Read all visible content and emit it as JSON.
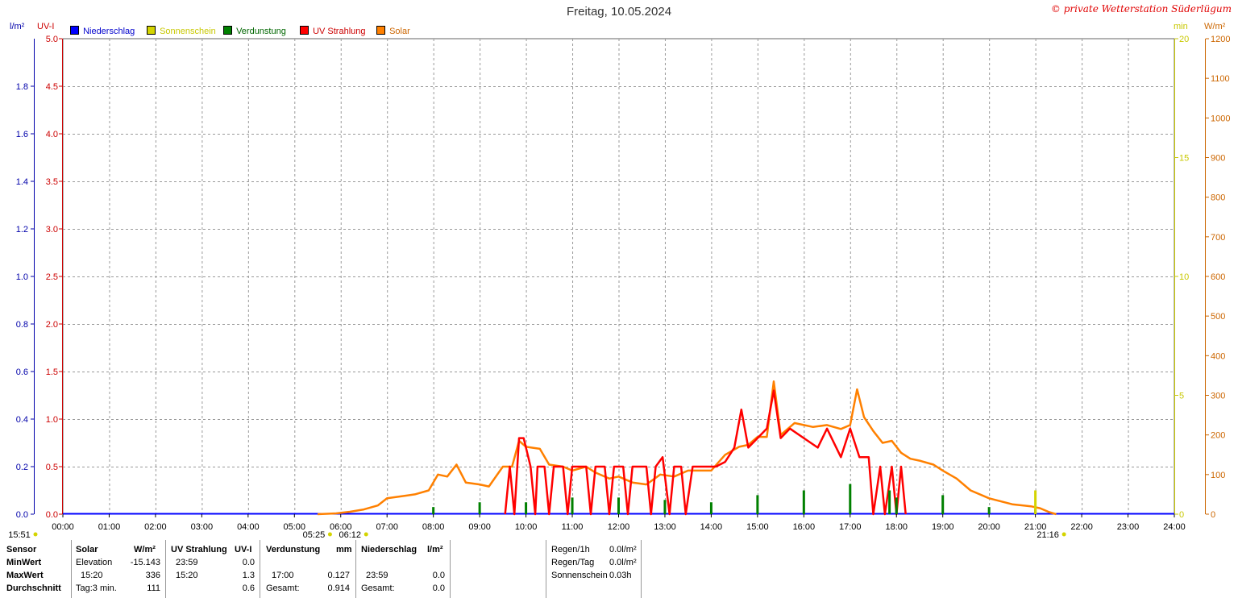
{
  "title": "Freitag, 10.05.2024",
  "copyright": "© private Wetterstation Süderlügum",
  "axis_units": {
    "left1": "l/m²",
    "left2": "UV-I",
    "right1": "min",
    "right2": "W/m²"
  },
  "legend": [
    {
      "label": "Niederschlag",
      "color": "#0000ff"
    },
    {
      "label": "Sonnenschein",
      "color": "#d4d400"
    },
    {
      "label": "Verdunstung",
      "color": "#008000"
    },
    {
      "label": "UV Strahlung",
      "color": "#ff0000"
    },
    {
      "label": "Solar",
      "color": "#ff8000"
    }
  ],
  "colors": {
    "precip_axis": "#0000aa",
    "uv_axis": "#cc0000",
    "sun_axis": "#c8c800",
    "solar_axis": "#cc6600",
    "grid": "#999999"
  },
  "chart_data": {
    "type": "line",
    "title": "Freitag, 10.05.2024",
    "x_ticks": [
      "00:00",
      "01:00",
      "02:00",
      "03:00",
      "04:00",
      "05:00",
      "06:00",
      "07:00",
      "08:00",
      "09:00",
      "10:00",
      "11:00",
      "12:00",
      "13:00",
      "14:00",
      "15:00",
      "16:00",
      "17:00",
      "18:00",
      "19:00",
      "20:00",
      "21:00",
      "22:00",
      "23:00",
      "24:00"
    ],
    "xlim_hours": [
      0,
      24
    ],
    "y_axes": {
      "precip": {
        "unit": "l/m²",
        "range": [
          0,
          2.0
        ],
        "ticks": [
          "0.0",
          "0.2",
          "0.4",
          "0.6",
          "0.8",
          "1.0",
          "1.2",
          "1.4",
          "1.6",
          "1.8"
        ]
      },
      "uv": {
        "unit": "UV-I",
        "range": [
          0,
          5.0
        ],
        "ticks": [
          "0.0",
          "0.5",
          "1.0",
          "1.5",
          "2.0",
          "2.5",
          "3.0",
          "3.5",
          "4.0",
          "4.5",
          "5.0"
        ]
      },
      "sunshine": {
        "unit": "min",
        "range": [
          0,
          20
        ],
        "ticks": [
          "0",
          "5",
          "10",
          "15",
          "20"
        ]
      },
      "solar": {
        "unit": "W/m²",
        "range": [
          0,
          1200
        ],
        "ticks": [
          "0",
          "100",
          "200",
          "300",
          "400",
          "500",
          "600",
          "700",
          "800",
          "900",
          "1000",
          "1100",
          "1200"
        ]
      }
    },
    "grid": true,
    "legend_position": "top-left",
    "series": [
      {
        "name": "Solar",
        "axis": "solar",
        "color": "#ff8000",
        "points": [
          [
            5.5,
            0
          ],
          [
            5.9,
            2
          ],
          [
            6.2,
            6
          ],
          [
            6.5,
            12
          ],
          [
            6.8,
            22
          ],
          [
            7.0,
            40
          ],
          [
            7.3,
            45
          ],
          [
            7.6,
            50
          ],
          [
            7.9,
            60
          ],
          [
            8.1,
            100
          ],
          [
            8.3,
            95
          ],
          [
            8.5,
            125
          ],
          [
            8.7,
            80
          ],
          [
            9.0,
            75
          ],
          [
            9.2,
            70
          ],
          [
            9.5,
            120
          ],
          [
            9.7,
            120
          ],
          [
            9.85,
            185
          ],
          [
            10.0,
            170
          ],
          [
            10.3,
            165
          ],
          [
            10.5,
            125
          ],
          [
            10.8,
            120
          ],
          [
            11.0,
            110
          ],
          [
            11.3,
            120
          ],
          [
            11.5,
            105
          ],
          [
            11.8,
            90
          ],
          [
            12.0,
            95
          ],
          [
            12.3,
            80
          ],
          [
            12.6,
            75
          ],
          [
            12.9,
            100
          ],
          [
            13.2,
            95
          ],
          [
            13.5,
            110
          ],
          [
            13.8,
            110
          ],
          [
            14.0,
            110
          ],
          [
            14.3,
            150
          ],
          [
            14.6,
            170
          ],
          [
            14.8,
            175
          ],
          [
            15.0,
            195
          ],
          [
            15.2,
            195
          ],
          [
            15.35,
            335
          ],
          [
            15.5,
            200
          ],
          [
            15.8,
            230
          ],
          [
            16.0,
            225
          ],
          [
            16.2,
            220
          ],
          [
            16.5,
            225
          ],
          [
            16.8,
            215
          ],
          [
            17.0,
            225
          ],
          [
            17.15,
            315
          ],
          [
            17.3,
            245
          ],
          [
            17.5,
            210
          ],
          [
            17.7,
            180
          ],
          [
            17.9,
            185
          ],
          [
            18.1,
            155
          ],
          [
            18.3,
            140
          ],
          [
            18.5,
            135
          ],
          [
            18.8,
            125
          ],
          [
            19.0,
            110
          ],
          [
            19.3,
            90
          ],
          [
            19.6,
            60
          ],
          [
            20.0,
            40
          ],
          [
            20.5,
            25
          ],
          [
            20.9,
            20
          ],
          [
            21.1,
            15
          ],
          [
            21.3,
            5
          ],
          [
            21.45,
            0
          ]
        ]
      },
      {
        "name": "UV Strahlung",
        "axis": "uv",
        "color": "#ff0000",
        "points": [
          [
            9.55,
            0
          ],
          [
            9.65,
            0.5
          ],
          [
            9.75,
            0.0
          ],
          [
            9.85,
            0.8
          ],
          [
            9.95,
            0.8
          ],
          [
            10.1,
            0.5
          ],
          [
            10.2,
            0.0
          ],
          [
            10.25,
            0.5
          ],
          [
            10.4,
            0.5
          ],
          [
            10.5,
            0.0
          ],
          [
            10.6,
            0.5
          ],
          [
            10.8,
            0.5
          ],
          [
            10.9,
            0.0
          ],
          [
            11.0,
            0.5
          ],
          [
            11.3,
            0.5
          ],
          [
            11.4,
            0.0
          ],
          [
            11.5,
            0.5
          ],
          [
            11.7,
            0.5
          ],
          [
            11.8,
            0.0
          ],
          [
            11.9,
            0.5
          ],
          [
            12.1,
            0.5
          ],
          [
            12.2,
            0.0
          ],
          [
            12.3,
            0.5
          ],
          [
            12.6,
            0.5
          ],
          [
            12.7,
            0.0
          ],
          [
            12.8,
            0.5
          ],
          [
            12.95,
            0.6
          ],
          [
            13.1,
            0.0
          ],
          [
            13.2,
            0.5
          ],
          [
            13.35,
            0.5
          ],
          [
            13.45,
            0.0
          ],
          [
            13.6,
            0.5
          ],
          [
            13.8,
            0.5
          ],
          [
            13.95,
            0.5
          ],
          [
            14.1,
            0.5
          ],
          [
            14.3,
            0.55
          ],
          [
            14.5,
            0.7
          ],
          [
            14.65,
            1.1
          ],
          [
            14.8,
            0.7
          ],
          [
            15.0,
            0.8
          ],
          [
            15.2,
            0.9
          ],
          [
            15.35,
            1.3
          ],
          [
            15.5,
            0.8
          ],
          [
            15.7,
            0.9
          ],
          [
            16.0,
            0.8
          ],
          [
            16.3,
            0.7
          ],
          [
            16.5,
            0.9
          ],
          [
            16.8,
            0.6
          ],
          [
            17.0,
            0.9
          ],
          [
            17.2,
            0.6
          ],
          [
            17.4,
            0.6
          ],
          [
            17.5,
            0.0
          ],
          [
            17.65,
            0.5
          ],
          [
            17.75,
            0.0
          ],
          [
            17.9,
            0.5
          ],
          [
            18.0,
            0.0
          ],
          [
            18.1,
            0.5
          ],
          [
            18.2,
            0.0
          ]
        ]
      },
      {
        "name": "Verdunstung",
        "axis": "precip",
        "color": "#008000",
        "spikes": [
          [
            8.0,
            0.03
          ],
          [
            9.0,
            0.05
          ],
          [
            10.0,
            0.05
          ],
          [
            11.0,
            0.07
          ],
          [
            12.0,
            0.07
          ],
          [
            13.0,
            0.06
          ],
          [
            14.0,
            0.05
          ],
          [
            15.0,
            0.08
          ],
          [
            16.0,
            0.1
          ],
          [
            17.0,
            0.127
          ],
          [
            17.85,
            0.1
          ],
          [
            18.0,
            0.07
          ],
          [
            19.0,
            0.08
          ],
          [
            20.0,
            0.03
          ],
          [
            21.0,
            0.02
          ]
        ]
      },
      {
        "name": "Sonnenschein",
        "axis": "sunshine",
        "color": "#d4d400",
        "spikes": [
          [
            21.0,
            1.0
          ]
        ]
      },
      {
        "name": "Niederschlag",
        "axis": "precip",
        "color": "#0000ff",
        "spikes": []
      }
    ],
    "annotations": [
      {
        "text": "15:51",
        "time": 0.0
      },
      {
        "text": "05:25",
        "time": 5.42
      },
      {
        "text": "06:12",
        "time": 6.2
      },
      {
        "text": "21:16",
        "time": 21.27
      }
    ]
  },
  "table": {
    "headers": {
      "sensor": "Sensor",
      "solar": "Solar",
      "solar_unit": "W/m²",
      "uv": "UV Strahlung",
      "uv_unit": "UV-I",
      "evap": "Verdunstung",
      "evap_unit": "mm",
      "precip": "Niederschlag",
      "precip_unit": "l/m²"
    },
    "rows": [
      {
        "label": "MinWert",
        "solar_time": "Elevation",
        "solar_val": "-15.143",
        "uv_time": "23:59",
        "uv_val": "0.0",
        "evap_time": "",
        "evap_val": "",
        "precip_time": "",
        "precip_val": ""
      },
      {
        "label": "MaxWert",
        "solar_time": "15:20",
        "solar_val": "336",
        "uv_time": "15:20",
        "uv_val": "1.3",
        "evap_time": "17:00",
        "evap_val": "0.127",
        "precip_time": "23:59",
        "precip_val": "0.0"
      },
      {
        "label": "Durchschnitt",
        "solar_time": "Tag:3 min.",
        "solar_val": "111",
        "uv_time": "",
        "uv_val": "0.6",
        "evap_time": "Gesamt:",
        "evap_val": "0.914",
        "precip_time": "Gesamt:",
        "precip_val": "0.0"
      }
    ],
    "extra": [
      {
        "label": "Regen/1h",
        "value": "0.0l/m²"
      },
      {
        "label": "Regen/Tag",
        "value": "0.0l/m²"
      },
      {
        "label": "Sonnenschein",
        "value": "0.03h"
      }
    ]
  }
}
